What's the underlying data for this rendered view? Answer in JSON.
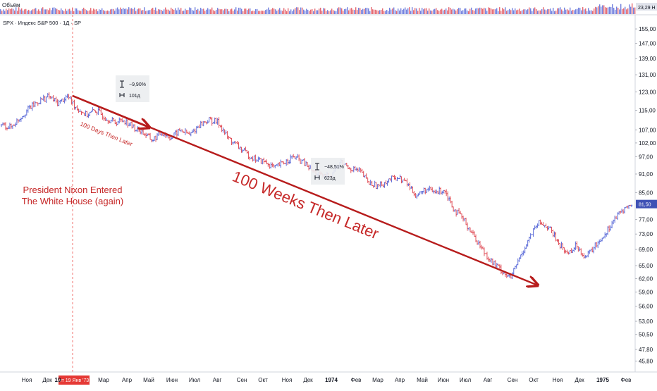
{
  "header": {
    "volume_label": "Объём",
    "volume_value": "23,29 Н",
    "symbol_line": "SPX · Индекс S&P 500 · 1Д · SP"
  },
  "price_badge": "81,50",
  "date_badge": "пт 19 Янв '73",
  "annotations": {
    "nixon_line1": "President Nixon Entered",
    "nixon_line2": "The White House (again)",
    "days_label": "100 Days Then Later",
    "weeks_label": "100 Weeks Then Later"
  },
  "measure_boxes": [
    {
      "pct": "−9,90%",
      "bars": "101д"
    },
    {
      "pct": "−48,51%",
      "bars": "623д"
    }
  ],
  "colors": {
    "up": "#5b6bd8",
    "down": "#e0505a",
    "arrow": "#b71c1c",
    "text_red": "#c62828"
  },
  "icons": {
    "range": "vertical-range-icon",
    "span": "horizontal-span-icon"
  },
  "chart_data": {
    "type": "ohlc",
    "y_axis": {
      "scale": "log",
      "ticks": [
        "155,00",
        "147,00",
        "139,00",
        "131,00",
        "123,00",
        "115,00",
        "107,00",
        "102,00",
        "97,00",
        "91,00",
        "85,00",
        "77,00",
        "73,00",
        "69,00",
        "65,00",
        "62,00",
        "59,00",
        "56,00",
        "53,00",
        "50,50",
        "47,80",
        "45,80"
      ],
      "ylim": [
        44,
        162
      ]
    },
    "x_axis": {
      "ticks": [
        "Ноя",
        "Дек",
        "19",
        "Мар",
        "Апр",
        "Май",
        "Июн",
        "Июл",
        "Авг",
        "Сен",
        "Окт",
        "Ноя",
        "Дек",
        "1974",
        "Фев",
        "Мар",
        "Апр",
        "Май",
        "Июн",
        "Июл",
        "Авг",
        "Сен",
        "Окт",
        "Ноя",
        "Дек",
        "1975",
        "Фев"
      ],
      "range": [
        "Ноя 1972",
        "Фев 1975"
      ]
    },
    "series": [
      {
        "values": [
          109,
          108,
          112,
          116,
          119,
          121,
          118,
          121,
          116,
          113,
          115,
          112,
          110,
          111,
          108,
          106,
          103,
          106,
          104,
          107,
          105,
          109,
          111,
          110,
          104,
          101,
          98,
          96,
          95,
          93,
          95,
          97,
          95,
          92,
          90,
          91,
          95,
          93,
          92,
          88,
          87,
          89,
          90,
          88,
          84,
          86,
          85,
          86,
          80,
          77,
          73,
          69,
          66,
          64,
          62,
          67,
          72,
          76,
          75,
          71,
          68,
          70,
          67,
          70,
          73,
          77,
          80,
          81.5
        ]
      }
    ],
    "arrows": [
      {
        "from": [
          "19 Янв 1973",
          121.5
        ],
        "to": [
          "Май 1973",
          109.5
        ]
      },
      {
        "from": [
          "19 Янв 1973",
          121.5
        ],
        "to": [
          "Окт 1974",
          62.6
        ]
      }
    ]
  }
}
